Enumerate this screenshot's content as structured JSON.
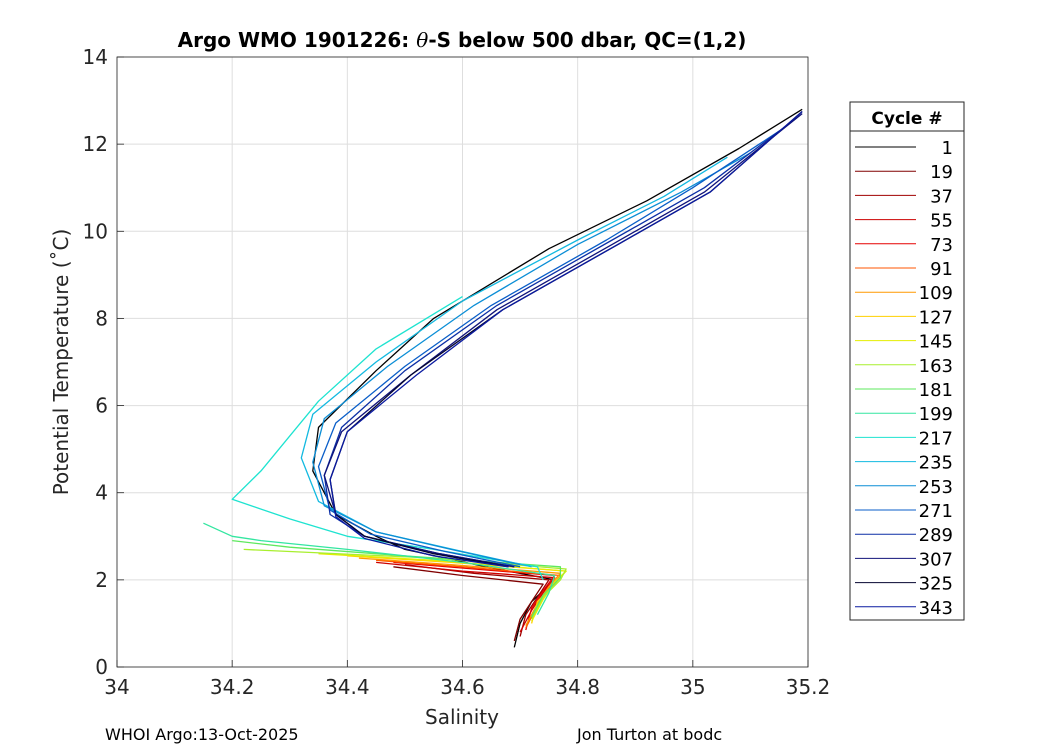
{
  "chart_data": {
    "type": "line",
    "title_prefix": "Argo WMO 1901226: ",
    "title_theta": "θ",
    "title_suffix": "-S below 500 dbar,  QC=(1,2)",
    "xlabel": "Salinity",
    "ylabel": "Potential Temperature (˚C)",
    "xlim": [
      34,
      35.2
    ],
    "ylim": [
      0,
      14
    ],
    "xticks": [
      "34",
      "34.2",
      "34.4",
      "34.6",
      "34.8",
      "35",
      "35.2"
    ],
    "xtick_values": [
      34,
      34.2,
      34.4,
      34.6,
      34.8,
      35,
      35.2
    ],
    "yticks": [
      "0",
      "2",
      "4",
      "6",
      "8",
      "10",
      "12",
      "14"
    ],
    "ytick_values": [
      0,
      2,
      4,
      6,
      8,
      10,
      12,
      14
    ],
    "grid": true,
    "legend_title": "Cycle #",
    "legend_position": "outside-right",
    "series": [
      {
        "name": "1",
        "color": "#000000",
        "x": [
          34.69,
          34.7,
          34.72,
          34.76,
          34.64,
          34.5,
          34.45,
          34.38,
          34.34,
          34.35,
          34.45,
          34.55,
          34.75,
          34.92,
          35.08,
          35.19
        ],
        "y": [
          0.45,
          1.0,
          1.5,
          2.0,
          2.3,
          2.7,
          3.0,
          3.5,
          4.5,
          5.5,
          6.8,
          8.0,
          9.6,
          10.7,
          11.9,
          12.8
        ]
      },
      {
        "name": "19",
        "color": "#800000",
        "x": [
          34.69,
          34.7,
          34.72,
          34.74,
          34.6,
          34.48
        ],
        "y": [
          0.6,
          1.1,
          1.5,
          1.9,
          2.1,
          2.3
        ]
      },
      {
        "name": "37",
        "color": "#a00000",
        "x": [
          34.7,
          34.71,
          34.73,
          34.75,
          34.62,
          34.5
        ],
        "y": [
          0.7,
          1.2,
          1.6,
          2.0,
          2.15,
          2.35
        ]
      },
      {
        "name": "55",
        "color": "#cc0000",
        "x": [
          34.7,
          34.72,
          34.74,
          34.76,
          34.6,
          34.45
        ],
        "y": [
          0.8,
          1.3,
          1.7,
          2.05,
          2.2,
          2.4
        ]
      },
      {
        "name": "73",
        "color": "#e60000",
        "x": [
          34.71,
          34.72,
          34.74,
          34.76,
          34.62,
          34.48
        ],
        "y": [
          0.85,
          1.35,
          1.75,
          2.1,
          2.25,
          2.4
        ]
      },
      {
        "name": "91",
        "color": "#ff5500",
        "x": [
          34.71,
          34.73,
          34.75,
          34.77,
          34.6,
          34.45
        ],
        "y": [
          0.9,
          1.4,
          1.8,
          2.1,
          2.3,
          2.45
        ]
      },
      {
        "name": "109",
        "color": "#ff9900",
        "x": [
          34.71,
          34.73,
          34.75,
          34.77,
          34.58,
          34.42
        ],
        "y": [
          0.95,
          1.45,
          1.85,
          2.15,
          2.35,
          2.5
        ]
      },
      {
        "name": "127",
        "color": "#ffd000",
        "x": [
          34.72,
          34.73,
          34.76,
          34.78,
          34.58,
          34.4
        ],
        "y": [
          1.0,
          1.5,
          1.9,
          2.2,
          2.4,
          2.55
        ]
      },
      {
        "name": "145",
        "color": "#e5ee00",
        "x": [
          34.72,
          34.74,
          34.76,
          34.78,
          34.55,
          34.35
        ],
        "y": [
          1.05,
          1.55,
          1.95,
          2.2,
          2.45,
          2.6
        ]
      },
      {
        "name": "163",
        "color": "#a8ef2e",
        "x": [
          34.72,
          34.74,
          34.77,
          34.78,
          34.55,
          34.3,
          34.22
        ],
        "y": [
          1.1,
          1.6,
          2.0,
          2.25,
          2.5,
          2.65,
          2.7
        ]
      },
      {
        "name": "181",
        "color": "#5ee85e",
        "x": [
          34.72,
          34.74,
          34.77,
          34.77,
          34.5,
          34.3,
          34.2
        ],
        "y": [
          1.15,
          1.65,
          2.05,
          2.3,
          2.55,
          2.75,
          2.9
        ]
      },
      {
        "name": "199",
        "color": "#33e6a0",
        "x": [
          34.73,
          34.75,
          34.76,
          34.6,
          34.4,
          34.25,
          34.2,
          34.15
        ],
        "y": [
          1.2,
          1.7,
          2.1,
          2.4,
          2.7,
          2.9,
          3.0,
          3.3
        ]
      },
      {
        "name": "217",
        "color": "#1ee3d0",
        "x": [
          34.74,
          34.73,
          34.55,
          34.4,
          34.3,
          34.2,
          34.25,
          34.3,
          34.35,
          34.45,
          34.6
        ],
        "y": [
          2.0,
          2.3,
          2.7,
          3.0,
          3.4,
          3.85,
          4.5,
          5.3,
          6.1,
          7.3,
          8.5
        ]
      },
      {
        "name": "235",
        "color": "#13b9e0",
        "x": [
          34.72,
          34.6,
          34.45,
          34.35,
          34.32,
          34.34,
          34.45,
          34.6,
          34.8,
          34.95,
          35.06
        ],
        "y": [
          2.3,
          2.65,
          3.1,
          3.8,
          4.8,
          5.8,
          7.0,
          8.4,
          9.8,
          10.8,
          11.7
        ]
      },
      {
        "name": "253",
        "color": "#0b8ed6",
        "x": [
          34.7,
          34.58,
          34.45,
          34.36,
          34.34,
          34.36,
          34.47,
          34.62,
          34.8,
          34.98,
          35.1
        ],
        "y": [
          2.35,
          2.7,
          3.1,
          3.7,
          4.7,
          5.7,
          6.9,
          8.3,
          9.7,
          10.9,
          11.8
        ]
      },
      {
        "name": "271",
        "color": "#0a5ec8",
        "x": [
          34.7,
          34.57,
          34.44,
          34.37,
          34.35,
          34.38,
          34.5,
          34.65,
          34.85,
          35.0,
          35.15
        ],
        "y": [
          2.3,
          2.65,
          3.05,
          3.6,
          4.6,
          5.6,
          6.9,
          8.3,
          9.8,
          11.0,
          12.3
        ]
      },
      {
        "name": "289",
        "color": "#0c2fa6",
        "x": [
          34.69,
          34.56,
          34.43,
          34.37,
          34.36,
          34.39,
          34.5,
          34.66,
          34.86,
          35.02,
          35.18
        ],
        "y": [
          2.3,
          2.6,
          3.0,
          3.5,
          4.4,
          5.5,
          6.8,
          8.3,
          9.8,
          11.0,
          12.6
        ]
      },
      {
        "name": "307",
        "color": "#10137a",
        "x": [
          34.69,
          34.56,
          34.43,
          34.38,
          34.36,
          34.39,
          34.51,
          34.66,
          34.86,
          35.02,
          35.19
        ],
        "y": [
          2.3,
          2.6,
          3.0,
          3.5,
          4.4,
          5.4,
          6.7,
          8.2,
          9.7,
          10.9,
          12.7
        ]
      },
      {
        "name": "325",
        "color": "#050530",
        "x": [
          34.68,
          34.55,
          34.43,
          34.38,
          34.37,
          34.4,
          34.51,
          34.67,
          34.87,
          35.03,
          35.19
        ],
        "y": [
          2.3,
          2.6,
          3.0,
          3.5,
          4.3,
          5.4,
          6.7,
          8.2,
          9.7,
          10.9,
          12.75
        ]
      },
      {
        "name": "343",
        "color": "#0a1aa0",
        "x": [
          34.68,
          34.55,
          34.43,
          34.38,
          34.37,
          34.4,
          34.52,
          34.67,
          34.87,
          35.03,
          35.19
        ],
        "y": [
          2.3,
          2.55,
          2.95,
          3.45,
          4.3,
          5.4,
          6.7,
          8.2,
          9.7,
          10.9,
          12.75
        ]
      }
    ]
  },
  "footer": {
    "left": "WHOI Argo:13-Oct-2025",
    "right": "Jon Turton at bodc"
  }
}
